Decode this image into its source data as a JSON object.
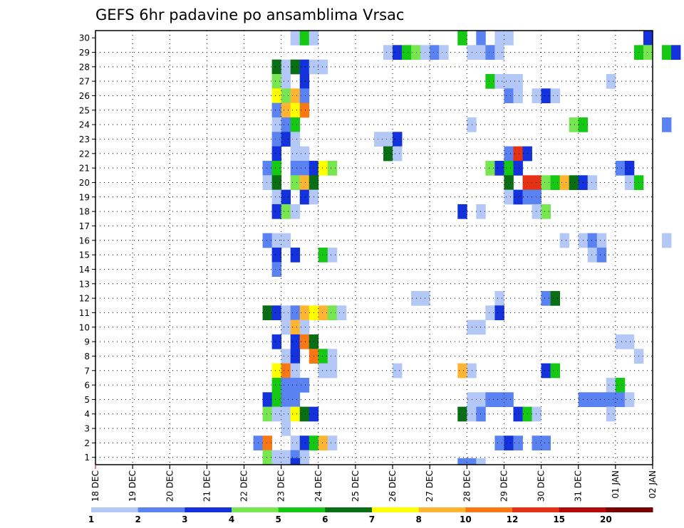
{
  "chart_data": {
    "type": "heatmap",
    "title": "GEFS 6hr padavine po ansamblima Vrsac",
    "xlabel": "",
    "ylabel": "",
    "x_ticks": [
      "18 DEC",
      "19 DEC",
      "20 DEC",
      "21 DEC",
      "22 DEC",
      "23 DEC",
      "24 DEC",
      "25 DEC",
      "26 DEC",
      "27 DEC",
      "28 DEC",
      "29 DEC",
      "30 DEC",
      "31 DEC",
      "01 JAN",
      "02 JAN"
    ],
    "y_ticks": [
      "1",
      "2",
      "3",
      "4",
      "5",
      "6",
      "7",
      "8",
      "9",
      "10",
      "11",
      "12",
      "13",
      "14",
      "15",
      "16",
      "17",
      "18",
      "19",
      "20",
      "21",
      "22",
      "23",
      "24",
      "25",
      "26",
      "27",
      "28",
      "29",
      "30"
    ],
    "time_step": "6hr",
    "x_range": [
      "18 DEC",
      "02 JAN"
    ],
    "y_range": [
      0,
      30
    ],
    "grid": true,
    "colorbar": {
      "placement": "bottom",
      "levels": [
        "1",
        "2",
        "3",
        "4",
        "5",
        "6",
        "7",
        "8",
        "10",
        "12",
        "15",
        "20"
      ],
      "colors": [
        "#b4c8f8",
        "#5a82f0",
        "#1432dc",
        "#78e650",
        "#14c814",
        "#0a6e14",
        "#ffff00",
        "#ffb432",
        "#fa7814",
        "#e63214",
        "#b40a0a",
        "#780000"
      ]
    },
    "cells": [
      [
        30,
        "23 DEC",
        1,
        1
      ],
      [
        30,
        "23 DEC",
        2,
        5
      ],
      [
        30,
        "23 DEC",
        3,
        1
      ],
      [
        30,
        "27 DEC",
        3,
        5
      ],
      [
        30,
        "28 DEC",
        1,
        2
      ],
      [
        30,
        "28 DEC",
        3,
        1
      ],
      [
        30,
        "29 DEC",
        0,
        1
      ],
      [
        30,
        "01 JAN",
        3,
        3
      ],
      [
        29,
        "25 DEC",
        3,
        1
      ],
      [
        29,
        "26 DEC",
        0,
        3
      ],
      [
        29,
        "26 DEC",
        1,
        5
      ],
      [
        29,
        "26 DEC",
        2,
        4
      ],
      [
        29,
        "26 DEC",
        3,
        1
      ],
      [
        29,
        "27 DEC",
        0,
        2
      ],
      [
        29,
        "27 DEC",
        1,
        1
      ],
      [
        29,
        "28 DEC",
        0,
        1
      ],
      [
        29,
        "28 DEC",
        1,
        1
      ],
      [
        29,
        "28 DEC",
        2,
        2
      ],
      [
        29,
        "28 DEC",
        3,
        1
      ],
      [
        29,
        "01 JAN",
        2,
        5
      ],
      [
        29,
        "01 JAN",
        3,
        4
      ],
      [
        29,
        "02 JAN",
        1,
        5
      ],
      [
        29,
        "02 JAN",
        2,
        3
      ],
      [
        28,
        "22 DEC",
        3,
        6
      ],
      [
        28,
        "23 DEC",
        0,
        1
      ],
      [
        28,
        "23 DEC",
        1,
        6
      ],
      [
        28,
        "23 DEC",
        2,
        3
      ],
      [
        28,
        "23 DEC",
        3,
        1
      ],
      [
        28,
        "24 DEC",
        0,
        1
      ],
      [
        27,
        "22 DEC",
        3,
        4
      ],
      [
        27,
        "23 DEC",
        0,
        1
      ],
      [
        27,
        "23 DEC",
        2,
        3
      ],
      [
        27,
        "28 DEC",
        2,
        5
      ],
      [
        27,
        "28 DEC",
        3,
        1
      ],
      [
        27,
        "29 DEC",
        0,
        1
      ],
      [
        27,
        "29 DEC",
        1,
        1
      ],
      [
        27,
        "31 DEC",
        3,
        1
      ],
      [
        26,
        "22 DEC",
        3,
        7
      ],
      [
        26,
        "23 DEC",
        0,
        4
      ],
      [
        26,
        "23 DEC",
        1,
        8
      ],
      [
        26,
        "23 DEC",
        2,
        2
      ],
      [
        26,
        "29 DEC",
        0,
        2
      ],
      [
        26,
        "29 DEC",
        1,
        1
      ],
      [
        26,
        "29 DEC",
        3,
        1
      ],
      [
        26,
        "30 DEC",
        0,
        3
      ],
      [
        26,
        "30 DEC",
        1,
        1
      ],
      [
        25,
        "22 DEC",
        3,
        2
      ],
      [
        25,
        "23 DEC",
        0,
        8
      ],
      [
        25,
        "23 DEC",
        1,
        7
      ],
      [
        25,
        "23 DEC",
        2,
        9
      ],
      [
        24,
        "22 DEC",
        3,
        1
      ],
      [
        24,
        "23 DEC",
        0,
        2
      ],
      [
        24,
        "23 DEC",
        1,
        5
      ],
      [
        24,
        "28 DEC",
        0,
        1
      ],
      [
        24,
        "30 DEC",
        3,
        4
      ],
      [
        24,
        "31 DEC",
        0,
        5
      ],
      [
        24,
        "02 JAN",
        1,
        2
      ],
      [
        23,
        "22 DEC",
        3,
        2
      ],
      [
        23,
        "23 DEC",
        0,
        3
      ],
      [
        23,
        "23 DEC",
        1,
        1
      ],
      [
        23,
        "25 DEC",
        2,
        1
      ],
      [
        23,
        "25 DEC",
        3,
        1
      ],
      [
        23,
        "26 DEC",
        0,
        3
      ],
      [
        22,
        "22 DEC",
        3,
        3
      ],
      [
        22,
        "23 DEC",
        1,
        1
      ],
      [
        22,
        "23 DEC",
        2,
        1
      ],
      [
        22,
        "25 DEC",
        3,
        6
      ],
      [
        22,
        "26 DEC",
        0,
        1
      ],
      [
        22,
        "29 DEC",
        0,
        2
      ],
      [
        22,
        "29 DEC",
        1,
        10
      ],
      [
        22,
        "29 DEC",
        2,
        3
      ],
      [
        21,
        "22 DEC",
        2,
        2
      ],
      [
        21,
        "22 DEC",
        3,
        5
      ],
      [
        21,
        "23 DEC",
        1,
        2
      ],
      [
        21,
        "23 DEC",
        2,
        2
      ],
      [
        21,
        "23 DEC",
        3,
        3
      ],
      [
        21,
        "24 DEC",
        0,
        7
      ],
      [
        21,
        "24 DEC",
        1,
        4
      ],
      [
        21,
        "28 DEC",
        2,
        4
      ],
      [
        21,
        "28 DEC",
        3,
        3
      ],
      [
        21,
        "29 DEC",
        0,
        5
      ],
      [
        21,
        "29 DEC",
        1,
        3
      ],
      [
        21,
        "01 JAN",
        0,
        2
      ],
      [
        21,
        "01 JAN",
        1,
        3
      ],
      [
        20,
        "22 DEC",
        2,
        1
      ],
      [
        20,
        "22 DEC",
        3,
        6
      ],
      [
        20,
        "23 DEC",
        1,
        4
      ],
      [
        20,
        "23 DEC",
        2,
        8
      ],
      [
        20,
        "23 DEC",
        3,
        6
      ],
      [
        20,
        "29 DEC",
        0,
        6
      ],
      [
        20,
        "29 DEC",
        2,
        10
      ],
      [
        20,
        "29 DEC",
        3,
        10
      ],
      [
        20,
        "30 DEC",
        0,
        4
      ],
      [
        20,
        "30 DEC",
        1,
        5
      ],
      [
        20,
        "30 DEC",
        2,
        8
      ],
      [
        20,
        "30 DEC",
        3,
        6
      ],
      [
        20,
        "31 DEC",
        0,
        3
      ],
      [
        20,
        "31 DEC",
        1,
        1
      ],
      [
        20,
        "01 JAN",
        1,
        1
      ],
      [
        20,
        "01 JAN",
        2,
        5
      ],
      [
        19,
        "22 DEC",
        3,
        1
      ],
      [
        19,
        "23 DEC",
        0,
        3
      ],
      [
        19,
        "23 DEC",
        2,
        3
      ],
      [
        19,
        "23 DEC",
        3,
        1
      ],
      [
        19,
        "29 DEC",
        0,
        1
      ],
      [
        19,
        "29 DEC",
        1,
        3
      ],
      [
        19,
        "29 DEC",
        2,
        2
      ],
      [
        19,
        "29 DEC",
        3,
        2
      ],
      [
        18,
        "22 DEC",
        3,
        3
      ],
      [
        18,
        "23 DEC",
        0,
        4
      ],
      [
        18,
        "23 DEC",
        1,
        1
      ],
      [
        18,
        "27 DEC",
        3,
        3
      ],
      [
        18,
        "28 DEC",
        1,
        1
      ],
      [
        18,
        "29 DEC",
        3,
        1
      ],
      [
        18,
        "30 DEC",
        0,
        4
      ],
      [
        16,
        "22 DEC",
        2,
        2
      ],
      [
        16,
        "22 DEC",
        3,
        1
      ],
      [
        16,
        "23 DEC",
        0,
        1
      ],
      [
        16,
        "30 DEC",
        2,
        1
      ],
      [
        16,
        "31 DEC",
        0,
        1
      ],
      [
        16,
        "31 DEC",
        1,
        2
      ],
      [
        16,
        "31 DEC",
        2,
        1
      ],
      [
        16,
        "02 JAN",
        1,
        1
      ],
      [
        15,
        "22 DEC",
        3,
        3
      ],
      [
        15,
        "23 DEC",
        1,
        3
      ],
      [
        15,
        "24 DEC",
        0,
        5
      ],
      [
        15,
        "24 DEC",
        1,
        1
      ],
      [
        15,
        "31 DEC",
        1,
        1
      ],
      [
        15,
        "31 DEC",
        2,
        2
      ],
      [
        14,
        "22 DEC",
        3,
        2
      ],
      [
        12,
        "26 DEC",
        2,
        1
      ],
      [
        12,
        "26 DEC",
        3,
        1
      ],
      [
        12,
        "28 DEC",
        3,
        1
      ],
      [
        12,
        "30 DEC",
        0,
        2
      ],
      [
        12,
        "30 DEC",
        1,
        6
      ],
      [
        11,
        "22 DEC",
        2,
        6
      ],
      [
        11,
        "22 DEC",
        3,
        3
      ],
      [
        11,
        "23 DEC",
        0,
        1
      ],
      [
        11,
        "23 DEC",
        1,
        2
      ],
      [
        11,
        "23 DEC",
        2,
        8
      ],
      [
        11,
        "23 DEC",
        3,
        7
      ],
      [
        11,
        "24 DEC",
        0,
        8
      ],
      [
        11,
        "24 DEC",
        1,
        4
      ],
      [
        11,
        "24 DEC",
        2,
        1
      ],
      [
        11,
        "28 DEC",
        2,
        1
      ],
      [
        11,
        "28 DEC",
        3,
        3
      ],
      [
        10,
        "23 DEC",
        0,
        1
      ],
      [
        10,
        "23 DEC",
        1,
        8
      ],
      [
        10,
        "23 DEC",
        2,
        1
      ],
      [
        10,
        "28 DEC",
        0,
        1
      ],
      [
        10,
        "28 DEC",
        1,
        1
      ],
      [
        9,
        "22 DEC",
        3,
        3
      ],
      [
        9,
        "23 DEC",
        1,
        3
      ],
      [
        9,
        "23 DEC",
        2,
        9
      ],
      [
        9,
        "23 DEC",
        3,
        6
      ],
      [
        9,
        "01 JAN",
        0,
        1
      ],
      [
        9,
        "01 JAN",
        1,
        1
      ],
      [
        8,
        "23 DEC",
        0,
        1
      ],
      [
        8,
        "23 DEC",
        1,
        3
      ],
      [
        8,
        "23 DEC",
        3,
        9
      ],
      [
        8,
        "24 DEC",
        0,
        5
      ],
      [
        8,
        "24 DEC",
        1,
        1
      ],
      [
        8,
        "01 JAN",
        2,
        1
      ],
      [
        7,
        "22 DEC",
        3,
        7
      ],
      [
        7,
        "23 DEC",
        0,
        9
      ],
      [
        7,
        "23 DEC",
        1,
        1
      ],
      [
        7,
        "24 DEC",
        0,
        1
      ],
      [
        7,
        "24 DEC",
        1,
        1
      ],
      [
        7,
        "26 DEC",
        0,
        1
      ],
      [
        7,
        "27 DEC",
        3,
        8
      ],
      [
        7,
        "28 DEC",
        0,
        1
      ],
      [
        7,
        "30 DEC",
        0,
        3
      ],
      [
        7,
        "30 DEC",
        1,
        5
      ],
      [
        6,
        "22 DEC",
        3,
        5
      ],
      [
        6,
        "23 DEC",
        0,
        2
      ],
      [
        6,
        "23 DEC",
        1,
        2
      ],
      [
        6,
        "23 DEC",
        2,
        2
      ],
      [
        6,
        "31 DEC",
        3,
        1
      ],
      [
        6,
        "01 JAN",
        0,
        5
      ],
      [
        5,
        "22 DEC",
        2,
        3
      ],
      [
        5,
        "22 DEC",
        3,
        5
      ],
      [
        5,
        "23 DEC",
        0,
        2
      ],
      [
        5,
        "23 DEC",
        1,
        2
      ],
      [
        5,
        "28 DEC",
        0,
        1
      ],
      [
        5,
        "28 DEC",
        1,
        1
      ],
      [
        5,
        "28 DEC",
        2,
        2
      ],
      [
        5,
        "28 DEC",
        3,
        2
      ],
      [
        5,
        "29 DEC",
        0,
        2
      ],
      [
        5,
        "31 DEC",
        0,
        2
      ],
      [
        5,
        "31 DEC",
        1,
        2
      ],
      [
        5,
        "31 DEC",
        2,
        2
      ],
      [
        5,
        "31 DEC",
        3,
        2
      ],
      [
        5,
        "01 JAN",
        0,
        2
      ],
      [
        5,
        "01 JAN",
        1,
        1
      ],
      [
        4,
        "22 DEC",
        2,
        4
      ],
      [
        4,
        "22 DEC",
        3,
        1
      ],
      [
        4,
        "23 DEC",
        0,
        1
      ],
      [
        4,
        "23 DEC",
        1,
        7
      ],
      [
        4,
        "23 DEC",
        2,
        6
      ],
      [
        4,
        "23 DEC",
        3,
        3
      ],
      [
        4,
        "27 DEC",
        3,
        6
      ],
      [
        4,
        "28 DEC",
        0,
        1
      ],
      [
        4,
        "28 DEC",
        1,
        2
      ],
      [
        4,
        "29 DEC",
        1,
        3
      ],
      [
        4,
        "29 DEC",
        2,
        5
      ],
      [
        4,
        "29 DEC",
        3,
        1
      ],
      [
        4,
        "31 DEC",
        3,
        1
      ],
      [
        3,
        "23 DEC",
        0,
        1
      ],
      [
        2,
        "22 DEC",
        1,
        2
      ],
      [
        2,
        "22 DEC",
        2,
        9
      ],
      [
        2,
        "23 DEC",
        1,
        1
      ],
      [
        2,
        "23 DEC",
        2,
        3
      ],
      [
        2,
        "23 DEC",
        3,
        5
      ],
      [
        2,
        "24 DEC",
        0,
        8
      ],
      [
        2,
        "24 DEC",
        1,
        1
      ],
      [
        2,
        "28 DEC",
        3,
        2
      ],
      [
        2,
        "29 DEC",
        0,
        3
      ],
      [
        2,
        "29 DEC",
        1,
        2
      ],
      [
        2,
        "29 DEC",
        3,
        2
      ],
      [
        2,
        "30 DEC",
        0,
        2
      ],
      [
        1,
        "22 DEC",
        2,
        4
      ],
      [
        1,
        "22 DEC",
        3,
        1
      ],
      [
        1,
        "23 DEC",
        0,
        1
      ],
      [
        1,
        "23 DEC",
        1,
        2
      ],
      [
        1,
        "23 DEC",
        2,
        1
      ]
    ],
    "partial_row_cells": [
      [
        "22 DEC",
        3,
        1
      ],
      [
        "23 DEC",
        1,
        3
      ],
      [
        "27 DEC",
        3,
        2
      ],
      [
        "28 DEC",
        0,
        2
      ],
      [
        "28 DEC",
        1,
        1
      ]
    ]
  }
}
